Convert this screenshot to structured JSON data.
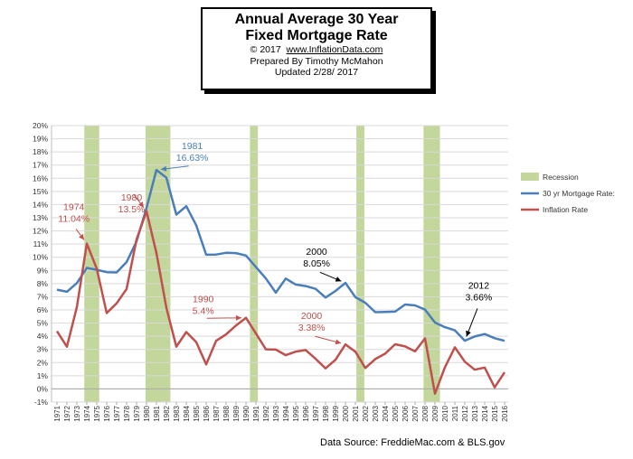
{
  "title": {
    "line1": "Annual  Average 30 Year",
    "line2": "Fixed Mortgage Rate",
    "copyright_prefix": "© 2017",
    "copyright_link": "www.InflationData.com",
    "prepared": "Prepared  By Timothy  McMahon",
    "updated": "Updated  2/28/ 2017"
  },
  "source": "Data Source: FreddieMac.com & BLS.gov",
  "chart_data": {
    "type": "line",
    "x": [
      1971,
      1972,
      1973,
      1974,
      1975,
      1976,
      1977,
      1978,
      1979,
      1980,
      1981,
      1982,
      1983,
      1984,
      1985,
      1986,
      1987,
      1988,
      1989,
      1990,
      1991,
      1992,
      1993,
      1994,
      1995,
      1996,
      1997,
      1998,
      1999,
      2000,
      2001,
      2002,
      2003,
      2004,
      2005,
      2006,
      2007,
      2008,
      2009,
      2010,
      2011,
      2012,
      2013,
      2014,
      2015,
      2016
    ],
    "ylim": [
      -1,
      20
    ],
    "yticks": [
      "-1%",
      "0%",
      "1%",
      "2%",
      "3%",
      "4%",
      "5%",
      "6%",
      "7%",
      "8%",
      "9%",
      "10%",
      "11%",
      "12%",
      "13%",
      "14%",
      "15%",
      "16%",
      "17%",
      "18%",
      "19%",
      "20%"
    ],
    "grid": true,
    "legend_position": "right",
    "series": [
      {
        "name": "30 yr Mortgage Rate:",
        "color": "#4a7ebb",
        "values": [
          7.54,
          7.38,
          8.04,
          9.19,
          9.05,
          8.87,
          8.85,
          9.64,
          11.2,
          13.74,
          16.63,
          16.04,
          13.24,
          13.88,
          12.43,
          10.19,
          10.21,
          10.34,
          10.32,
          10.13,
          9.25,
          8.39,
          7.31,
          8.38,
          7.93,
          7.81,
          7.6,
          6.94,
          7.44,
          8.05,
          6.97,
          6.54,
          5.83,
          5.84,
          5.87,
          6.41,
          6.34,
          6.03,
          5.04,
          4.69,
          4.45,
          3.66,
          3.98,
          4.17,
          3.85,
          3.65
        ]
      },
      {
        "name": "Inflation Rate",
        "color": "#c0504d",
        "values": [
          4.38,
          3.21,
          6.22,
          11.04,
          9.13,
          5.76,
          6.5,
          7.59,
          11.35,
          13.5,
          10.32,
          6.16,
          3.21,
          4.32,
          3.56,
          1.86,
          3.65,
          4.14,
          4.82,
          5.4,
          4.21,
          3.01,
          2.99,
          2.56,
          2.83,
          2.95,
          2.29,
          1.56,
          2.21,
          3.38,
          2.83,
          1.59,
          2.27,
          2.68,
          3.39,
          3.23,
          2.85,
          3.84,
          -0.36,
          1.64,
          3.16,
          2.07,
          1.46,
          1.62,
          0.12,
          1.26
        ]
      }
    ],
    "recessions": [
      [
        1973.75,
        1975.25
      ],
      [
        1979.9,
        1982.4
      ],
      [
        1990.4,
        1991.2
      ],
      [
        2001.1,
        2001.9
      ],
      [
        2007.85,
        2009.5
      ]
    ],
    "recession_label": "Recession",
    "annotations": [
      {
        "year_label": "1981",
        "value_label": "16.63%",
        "color": "#4a7ebb",
        "x": 1981,
        "y": 16.63,
        "text_x": 1984.6,
        "text_y": 18.2
      },
      {
        "year_label": "1974",
        "value_label": "11.04%",
        "color": "#c0504d",
        "x": 1974,
        "y": 11.04,
        "text_x": 1972.7,
        "text_y": 13.6
      },
      {
        "year_label": "1980",
        "value_label": "13.5%",
        "color": "#c0504d",
        "x": 1980,
        "y": 13.5,
        "text_x": 1978.5,
        "text_y": 14.3
      },
      {
        "year_label": "1990",
        "value_label": "5.4%",
        "color": "#c0504d",
        "x": 1990,
        "y": 5.4,
        "text_x": 1985.7,
        "text_y": 6.6
      },
      {
        "year_label": "2000",
        "value_label": "8.05%",
        "color": "#000000",
        "x": 2000,
        "y": 8.05,
        "text_x": 1997.1,
        "text_y": 10.2
      },
      {
        "year_label": "2000",
        "value_label": "3.38%",
        "color": "#c0504d",
        "x": 2000,
        "y": 3.38,
        "text_x": 1996.6,
        "text_y": 5.3
      },
      {
        "year_label": "2012",
        "value_label": "3.66%",
        "color": "#000000",
        "x": 2012,
        "y": 3.66,
        "text_x": 2013.4,
        "text_y": 7.6
      }
    ]
  }
}
